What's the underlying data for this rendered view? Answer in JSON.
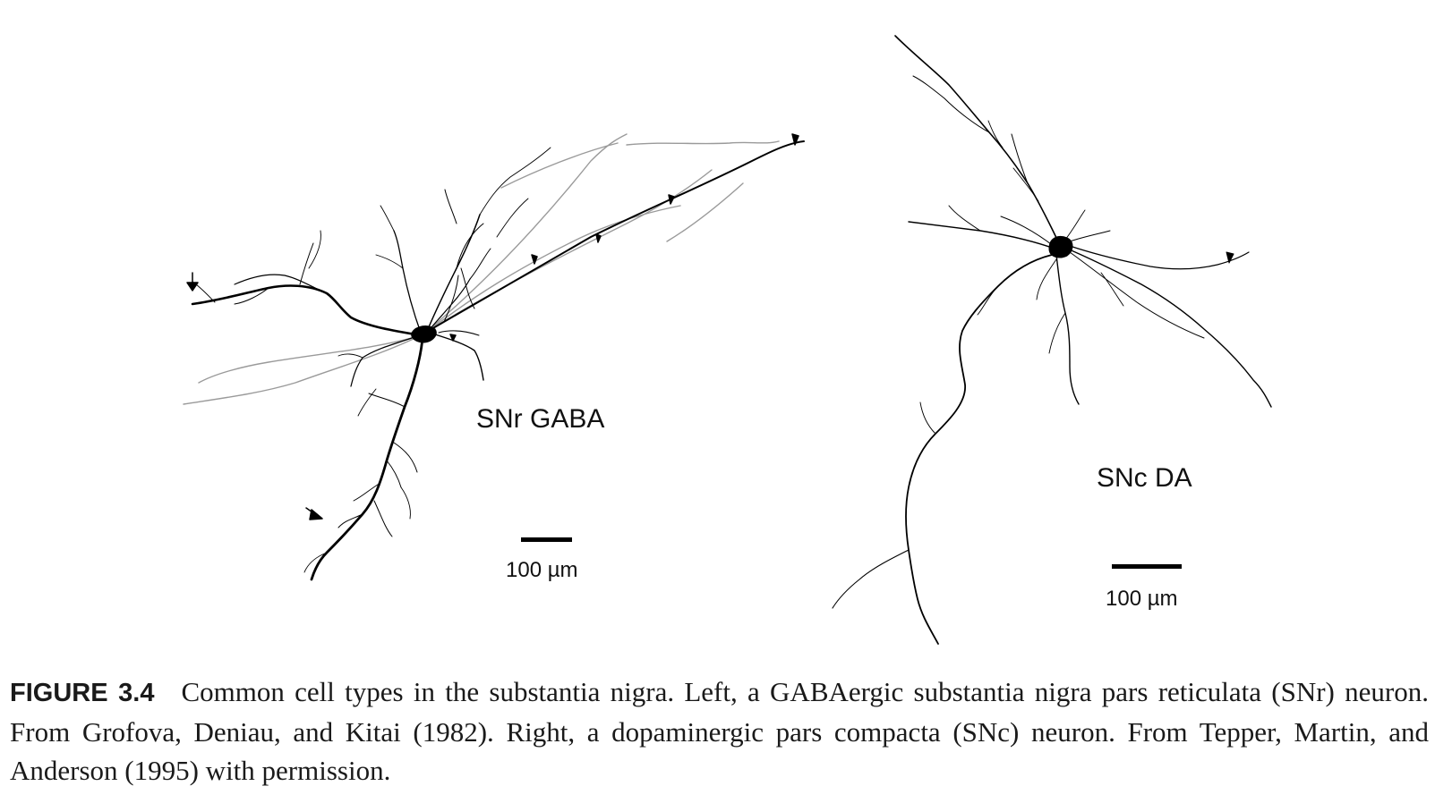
{
  "figure": {
    "left_panel": {
      "label": "SNr GABA",
      "scale_label": "100 µm"
    },
    "right_panel": {
      "label": "SNc DA",
      "scale_label": "100 µm"
    }
  },
  "caption": {
    "figure_number": "FIGURE 3.4",
    "text": "Common cell types in the substantia nigra. Left, a GABAergic substantia nigra pars reticulata (SNr) neuron. From Grofova, Deniau, and Kitai (1982). Right, a dopaminergic pars compacta (SNc) neuron. From Tepper, Martin, and Anderson (1995) with permission."
  }
}
